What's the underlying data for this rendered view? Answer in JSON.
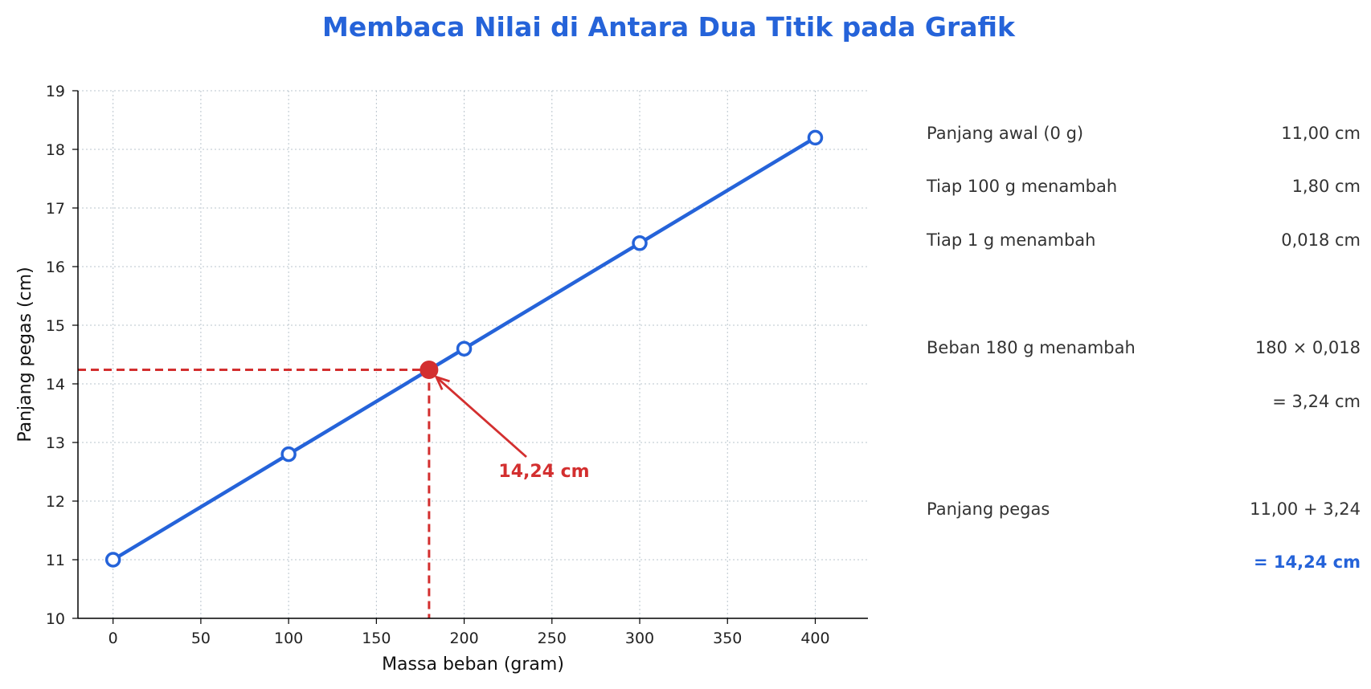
{
  "chart_data": {
    "type": "line",
    "title": "Membaca Nilai di Antara Dua Titik pada Grafik",
    "xlabel": "Massa beban (gram)",
    "ylabel": "Panjang pegas (cm)",
    "xlim": [
      -20,
      430
    ],
    "ylim": [
      10,
      19
    ],
    "x_ticks": [
      0,
      50,
      100,
      150,
      200,
      250,
      300,
      350,
      400
    ],
    "y_ticks": [
      10,
      11,
      12,
      13,
      14,
      15,
      16,
      17,
      18,
      19
    ],
    "grid": true,
    "series": [
      {
        "x": [
          0,
          100,
          200,
          300,
          400
        ],
        "y": [
          11.0,
          12.8,
          14.6,
          16.4,
          18.2
        ],
        "color": "#2563d9"
      }
    ],
    "highlight": {
      "x": 180,
      "y": 14.24,
      "color": "#d32f2f",
      "label": "14,24 cm"
    }
  },
  "calculation": {
    "rows": [
      {
        "label": "Panjang awal (0 g)",
        "value": "11,00 cm"
      },
      {
        "label": "Tiap 100 g menambah",
        "value": "1,80 cm"
      },
      {
        "label": "Tiap 1 g menambah",
        "value": "0,018 cm"
      },
      {
        "label": "Beban 180 g menambah",
        "value": "180 × 0,018"
      },
      {
        "label": "",
        "value": "= 3,24 cm"
      },
      {
        "label": "Panjang pegas",
        "value": "11,00 + 3,24"
      },
      {
        "label": "",
        "value": "= 14,24 cm"
      }
    ]
  },
  "colors": {
    "title": "#2563d9",
    "line": "#2563d9",
    "highlight": "#d32f2f",
    "result": "#2563d9"
  }
}
